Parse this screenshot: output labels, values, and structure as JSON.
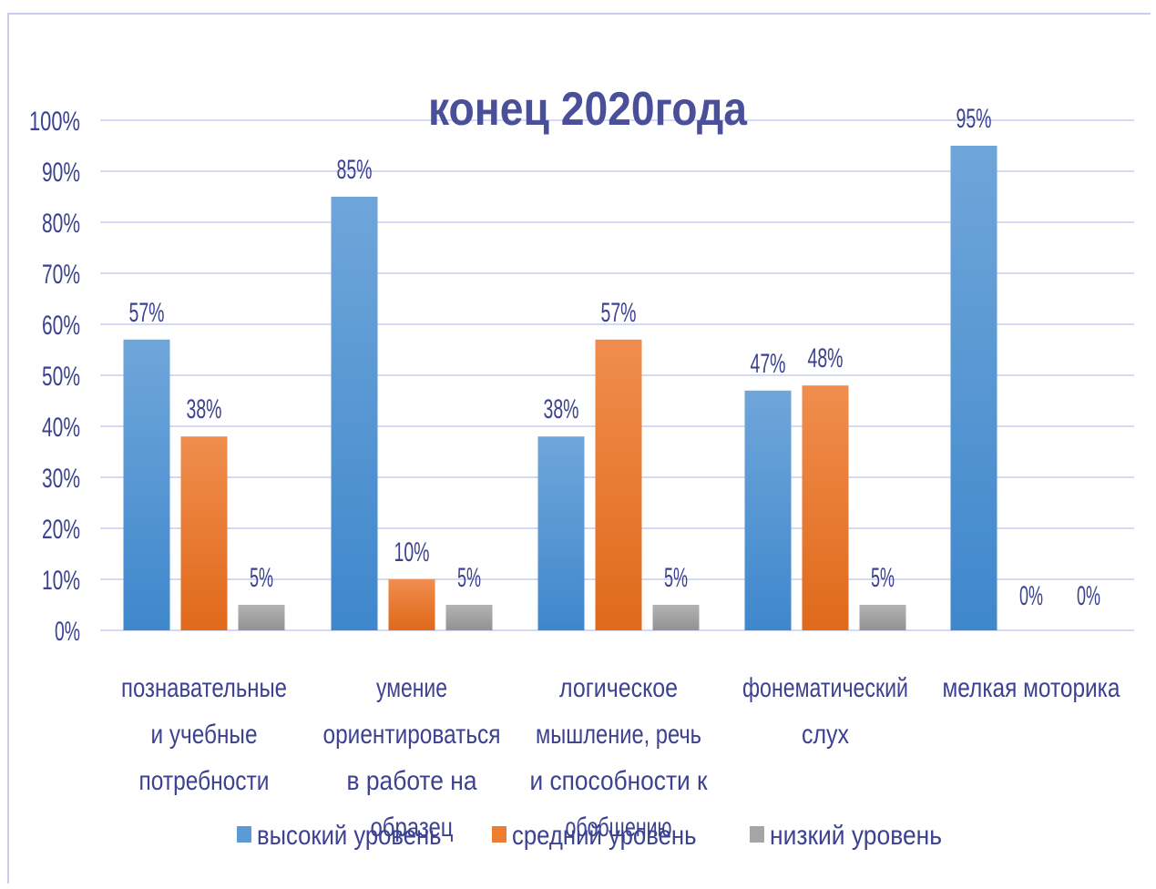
{
  "chart_data": {
    "type": "bar",
    "title": "конец  2020года",
    "categories": [
      [
        "познавательные",
        "и учебные",
        "потребности"
      ],
      [
        "умение",
        "ориентироваться",
        "в работе на",
        "образец"
      ],
      [
        "логическое",
        "мышление, речь",
        "и способности к",
        "обобщению"
      ],
      [
        "фонематический",
        "слух"
      ],
      [
        "мелкая моторика"
      ]
    ],
    "series": [
      {
        "name": "высокий уровень",
        "values": [
          57,
          85,
          38,
          47,
          95
        ],
        "labels": [
          "57%",
          "85%",
          "38%",
          "47%",
          "95%"
        ]
      },
      {
        "name": "средний уровень",
        "values": [
          38,
          10,
          57,
          48,
          0
        ],
        "labels": [
          "38%",
          "10%",
          "57%",
          "48%",
          "0%"
        ]
      },
      {
        "name": "низкий уровень",
        "values": [
          5,
          5,
          5,
          5,
          0
        ],
        "labels": [
          "5%",
          "5%",
          "5%",
          "5%",
          "0%"
        ]
      }
    ],
    "ylim": [
      0,
      100
    ],
    "yticks": [
      "0%",
      "10%",
      "20%",
      "30%",
      "40%",
      "50%",
      "60%",
      "70%",
      "80%",
      "90%",
      "100%"
    ],
    "grid": true,
    "legend_position": "bottom",
    "colors": {
      "high": "#5b9bd5",
      "medium": "#ed7d31",
      "low": "#a5a5a5",
      "grid": "#c7cdf0",
      "text": "#3c4290"
    }
  }
}
